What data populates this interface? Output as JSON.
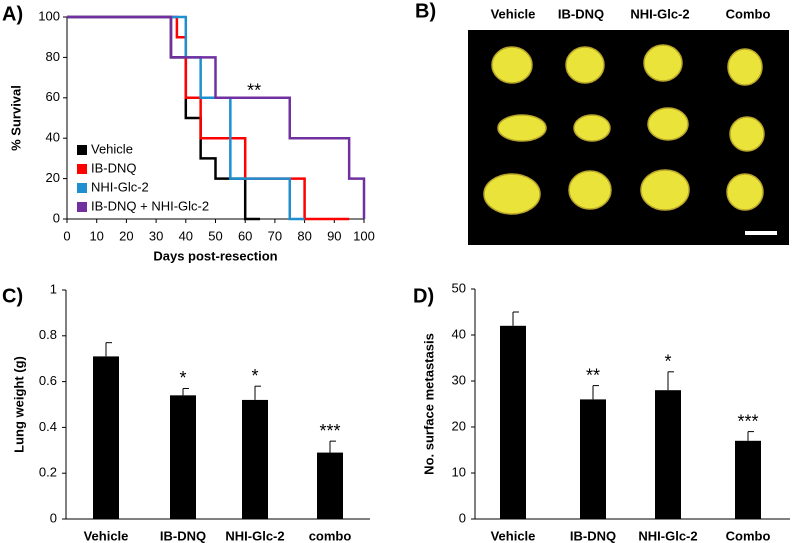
{
  "chart_data": [
    {
      "type": "step",
      "panel_label": "A)",
      "xlabel": "Days post-resection",
      "ylabel": "% Survival",
      "xlim": [
        0,
        100
      ],
      "ylim": [
        0,
        100
      ],
      "xticks": [
        0,
        10,
        20,
        30,
        40,
        50,
        60,
        70,
        80,
        90,
        100
      ],
      "yticks": [
        0,
        20,
        40,
        60,
        80,
        100
      ],
      "legend": "lower left",
      "annotation": "**",
      "series": [
        {
          "name": "Vehicle",
          "color": "#000000",
          "x": [
            0,
            35,
            40,
            45,
            50,
            60,
            65
          ],
          "values": [
            100,
            80,
            50,
            30,
            20,
            0,
            0
          ]
        },
        {
          "name": "IB-DNQ",
          "color": "#ff0000",
          "x": [
            0,
            37,
            40,
            45,
            60,
            80,
            95
          ],
          "values": [
            100,
            90,
            60,
            40,
            20,
            0,
            0
          ]
        },
        {
          "name": "NHI-Glc-2",
          "color": "#1f8fd0",
          "x": [
            0,
            40,
            45,
            55,
            75,
            80
          ],
          "values": [
            100,
            80,
            60,
            20,
            0,
            0
          ]
        },
        {
          "name": "IB-DNQ + NHI-Glc-2",
          "color": "#7030a0",
          "x": [
            0,
            35,
            50,
            75,
            95,
            100
          ],
          "values": [
            100,
            80,
            60,
            40,
            20,
            0
          ]
        }
      ]
    },
    {
      "type": "image",
      "panel_label": "B)",
      "columns": [
        "Vehicle",
        "IB-DNQ",
        "NHI-Glc-2",
        "Combo"
      ]
    },
    {
      "type": "bar",
      "panel_label": "C)",
      "ylabel": "Lung weight (g)",
      "color": "#000000",
      "categories": [
        "Vehicle",
        "IB-DNQ",
        "NHI-Glc-2",
        "combo"
      ],
      "values": [
        0.71,
        0.54,
        0.52,
        0.29
      ],
      "errors": [
        0.06,
        0.03,
        0.06,
        0.05
      ],
      "significance": [
        null,
        "*",
        "*",
        "***"
      ],
      "ylim": [
        0,
        1
      ],
      "yticks": [
        0,
        0.2,
        0.4,
        0.6,
        0.8,
        1
      ]
    },
    {
      "type": "bar",
      "panel_label": "D)",
      "ylabel": "No. surface metastasis",
      "color": "#000000",
      "categories": [
        "Vehicle",
        "IB-DNQ",
        "NHI-Glc-2",
        "Combo"
      ],
      "values": [
        42,
        26,
        28,
        17
      ],
      "errors": [
        3,
        3,
        4,
        2
      ],
      "significance": [
        null,
        "**",
        "*",
        "***"
      ],
      "ylim": [
        0,
        50
      ],
      "yticks": [
        0,
        10,
        20,
        30,
        40,
        50
      ]
    }
  ]
}
